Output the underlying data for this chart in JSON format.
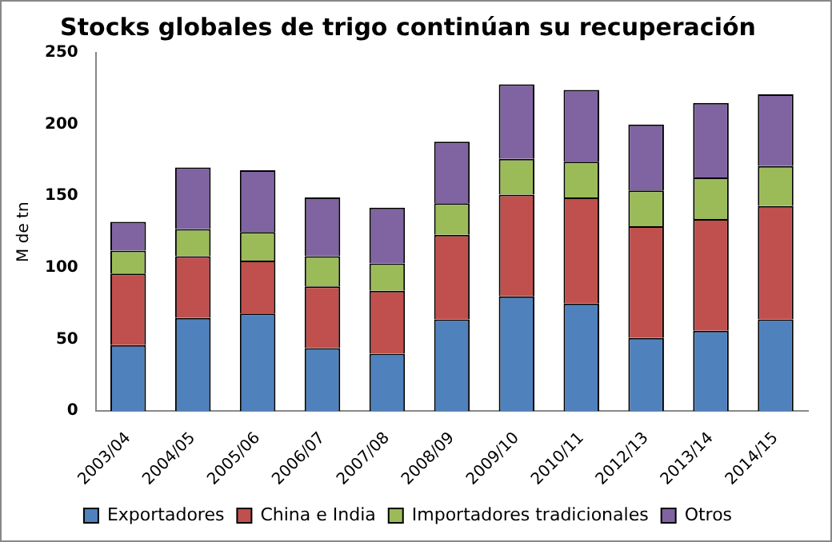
{
  "chart_data": {
    "type": "bar",
    "title": "Stocks globales de trigo continúan su recuperación",
    "ylabel": "M de tn",
    "categories": [
      "2003/04",
      "2004/05",
      "2005/06",
      "2006/07",
      "2007/08",
      "2008/09",
      "2009/10",
      "2010/11",
      "2012/13",
      "2013/14",
      "2014/15"
    ],
    "stacked": true,
    "series": [
      {
        "name": "Exportadores",
        "color": "#4f81bd",
        "values": [
          46,
          65,
          68,
          44,
          40,
          64,
          80,
          75,
          51,
          56,
          64
        ]
      },
      {
        "name": "China e India",
        "color": "#c0504d",
        "values": [
          50,
          43,
          37,
          43,
          44,
          59,
          71,
          74,
          78,
          78,
          79
        ]
      },
      {
        "name": "Importadores tradicionales",
        "color": "#9bbb59",
        "values": [
          16,
          19,
          20,
          21,
          19,
          22,
          25,
          25,
          25,
          29,
          28
        ]
      },
      {
        "name": "Otros",
        "color": "#8064a2",
        "values": [
          20,
          43,
          43,
          41,
          39,
          43,
          52,
          50,
          46,
          52,
          50
        ]
      }
    ],
    "ylim": [
      0,
      250
    ],
    "yticks": [
      0,
      50,
      100,
      150,
      200,
      250
    ],
    "grid": false,
    "legend": "bottom"
  }
}
